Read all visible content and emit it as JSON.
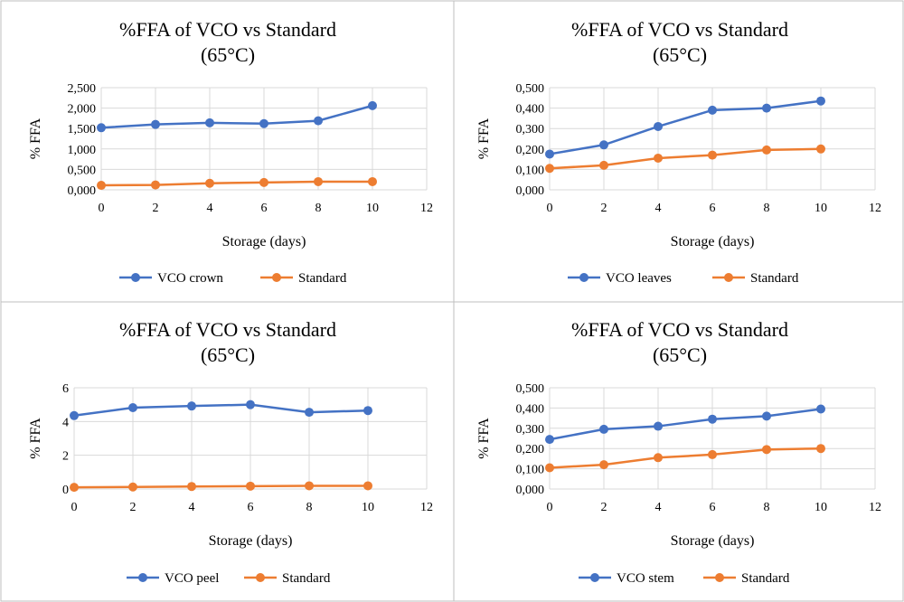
{
  "chart_data": [
    {
      "type": "line",
      "title": "%FFA of VCO vs Standard",
      "subtitle": "(65°C)",
      "xlabel": "Storage (days)",
      "ylabel": "% FFA",
      "x": [
        0,
        2,
        4,
        6,
        8,
        10
      ],
      "xlim": [
        0,
        12
      ],
      "xticks": [
        "0",
        "2",
        "4",
        "6",
        "8",
        "10",
        "12"
      ],
      "ylim": [
        0,
        2.5
      ],
      "yticks": [
        "0,000",
        "0,500",
        "1,000",
        "1,500",
        "2,000",
        "2,500"
      ],
      "grid": true,
      "legend": "bottom",
      "series": [
        {
          "name": "VCO crown",
          "color": "#4472C4",
          "values": [
            1.52,
            1.6,
            1.64,
            1.62,
            1.69,
            2.06
          ]
        },
        {
          "name": "Standard",
          "color": "#ED7D31",
          "values": [
            0.11,
            0.12,
            0.16,
            0.18,
            0.2,
            0.2
          ]
        }
      ]
    },
    {
      "type": "line",
      "title": "%FFA of VCO vs Standard",
      "subtitle": "(65°C)",
      "xlabel": "Storage (days)",
      "ylabel": "% FFA",
      "x": [
        0,
        2,
        4,
        6,
        8,
        10
      ],
      "xlim": [
        0,
        12
      ],
      "xticks": [
        "0",
        "2",
        "4",
        "6",
        "8",
        "10",
        "12"
      ],
      "ylim": [
        0,
        0.5
      ],
      "yticks": [
        "0,000",
        "0,100",
        "0,200",
        "0,300",
        "0,400",
        "0,500"
      ],
      "grid": true,
      "legend": "bottom",
      "series": [
        {
          "name": "VCO leaves",
          "color": "#4472C4",
          "values": [
            0.175,
            0.22,
            0.31,
            0.39,
            0.4,
            0.435
          ]
        },
        {
          "name": "Standard",
          "color": "#ED7D31",
          "values": [
            0.105,
            0.12,
            0.155,
            0.17,
            0.195,
            0.2
          ]
        }
      ]
    },
    {
      "type": "line",
      "title": "%FFA of VCO vs Standard",
      "subtitle": "(65°C)",
      "xlabel": "Storage (days)",
      "ylabel": "% FFA",
      "x": [
        0,
        2,
        4,
        6,
        8,
        10
      ],
      "xlim": [
        0,
        12
      ],
      "xticks": [
        "0",
        "2",
        "4",
        "6",
        "8",
        "10",
        "12"
      ],
      "ylim": [
        0,
        6
      ],
      "yticks": [
        "0",
        "2",
        "4",
        "6"
      ],
      "grid": true,
      "legend": "bottom",
      "series": [
        {
          "name": "VCO peel",
          "color": "#4472C4",
          "values": [
            4.35,
            4.82,
            4.92,
            5.0,
            4.55,
            4.65
          ]
        },
        {
          "name": "Standard",
          "color": "#ED7D31",
          "values": [
            0.1,
            0.12,
            0.15,
            0.17,
            0.19,
            0.19
          ]
        }
      ]
    },
    {
      "type": "line",
      "title": "%FFA of VCO vs Standard",
      "subtitle": "(65°C)",
      "xlabel": "Storage (days)",
      "ylabel": "% FFA",
      "x": [
        0,
        2,
        4,
        6,
        8,
        10
      ],
      "xlim": [
        0,
        12
      ],
      "xticks": [
        "0",
        "2",
        "4",
        "6",
        "8",
        "10",
        "12"
      ],
      "ylim": [
        0,
        0.5
      ],
      "yticks": [
        "0,000",
        "0,100",
        "0,200",
        "0,300",
        "0,400",
        "0,500"
      ],
      "grid": true,
      "legend": "bottom",
      "series": [
        {
          "name": "VCO stem",
          "color": "#4472C4",
          "values": [
            0.245,
            0.295,
            0.31,
            0.345,
            0.36,
            0.395
          ]
        },
        {
          "name": "Standard",
          "color": "#ED7D31",
          "values": [
            0.105,
            0.12,
            0.155,
            0.17,
            0.195,
            0.2
          ]
        }
      ]
    }
  ]
}
